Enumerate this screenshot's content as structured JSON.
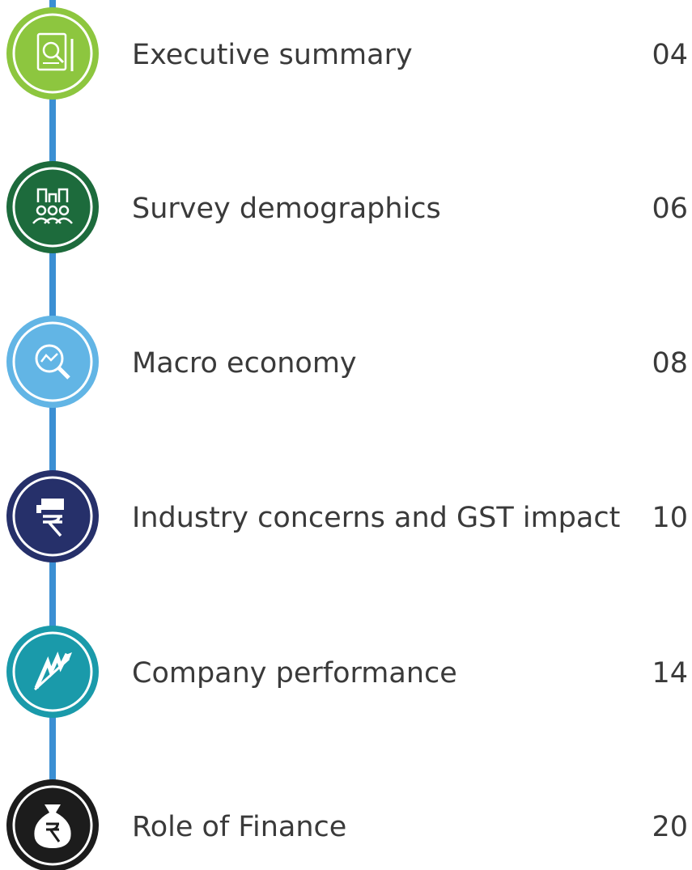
{
  "items": [
    {
      "title": "Executive summary",
      "page": "04"
    },
    {
      "title": "Survey demographics",
      "page": "06"
    },
    {
      "title": "Macro economy",
      "page": "08"
    },
    {
      "title": "Industry concerns and GST impact",
      "page": "10"
    },
    {
      "title": "Company performance",
      "page": "14"
    },
    {
      "title": "Role of Finance",
      "page": "20"
    }
  ]
}
